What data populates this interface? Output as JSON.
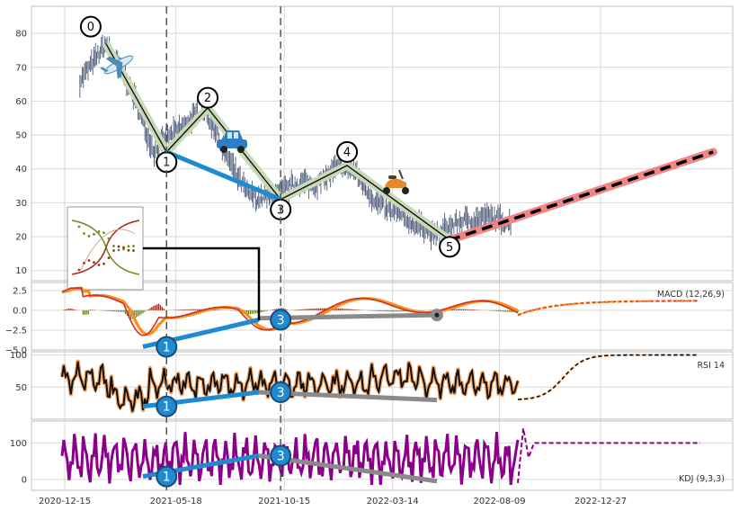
{
  "chart_data": {
    "type": "line",
    "x_ticks": [
      "2020-12-15",
      "2021-05-18",
      "2021-10-15",
      "2022-03-14",
      "2022-08-09",
      "2022-12-27"
    ],
    "panels": [
      {
        "id": "price",
        "label": "",
        "ylim": [
          7,
          88
        ],
        "y_ticks": [
          10,
          20,
          30,
          40,
          50,
          60,
          70,
          80
        ],
        "series": [
          {
            "type": "ohlc-bars",
            "values": [
              [
                "2021-01-05",
                66
              ],
              [
                "2021-01-25",
                72
              ],
              [
                "2021-02-10",
                77
              ],
              [
                "2021-03-01",
                70
              ],
              [
                "2021-03-20",
                62
              ],
              [
                "2021-04-05",
                52
              ],
              [
                "2021-04-18",
                45
              ],
              [
                "2021-05-05",
                49
              ],
              [
                "2021-05-25",
                52
              ],
              [
                "2021-06-10",
                55
              ],
              [
                "2021-06-25",
                58
              ],
              [
                "2021-07-10",
                52
              ],
              [
                "2021-07-25",
                45
              ],
              [
                "2021-08-10",
                38
              ],
              [
                "2021-08-25",
                33
              ],
              [
                "2021-09-08",
                31
              ],
              [
                "2021-09-25",
                32
              ],
              [
                "2021-10-10",
                33
              ],
              [
                "2021-10-25",
                35
              ],
              [
                "2021-11-10",
                36
              ],
              [
                "2021-11-25",
                35
              ],
              [
                "2021-12-10",
                37
              ],
              [
                "2021-12-25",
                40
              ],
              [
                "2022-01-08",
                41
              ],
              [
                "2022-01-22",
                39
              ],
              [
                "2022-02-05",
                34
              ],
              [
                "2022-02-20",
                30
              ],
              [
                "2022-03-05",
                28
              ],
              [
                "2022-03-22",
                27
              ],
              [
                "2022-04-10",
                24
              ],
              [
                "2022-04-25",
                23
              ],
              [
                "2022-05-10",
                20
              ],
              [
                "2022-05-25",
                22
              ],
              [
                "2022-06-10",
                24
              ],
              [
                "2022-06-25",
                25
              ],
              [
                "2022-07-10",
                25
              ],
              [
                "2022-07-25",
                26
              ],
              [
                "2022-08-10",
                25
              ],
              [
                "2022-08-25",
                24
              ]
            ]
          },
          {
            "type": "wave-path",
            "name": "",
            "points": [
              [
                "2021-02-10",
                77
              ],
              [
                "2021-05-05",
                45
              ],
              [
                "2021-07-01",
                58
              ],
              [
                "2021-10-10",
                31
              ],
              [
                "2022-01-10",
                41
              ],
              [
                "2022-06-01",
                19
              ]
            ]
          },
          {
            "type": "trend-line",
            "color": "#1f8ad0",
            "points": [
              [
                "2021-05-05",
                45
              ],
              [
                "2021-10-10",
                31
              ]
            ]
          },
          {
            "type": "projection",
            "color": "#f08080",
            "points": [
              [
                "2022-06-01",
                19
              ],
              [
                "2023-06-01",
                45
              ]
            ]
          }
        ],
        "wave_labels": [
          {
            "label": "0",
            "x": "2021-01-20",
            "y": 82
          },
          {
            "label": "1",
            "x": "2021-05-05",
            "y": 42
          },
          {
            "label": "2",
            "x": "2021-07-01",
            "y": 61
          },
          {
            "label": "3",
            "x": "2021-10-10",
            "y": 28
          },
          {
            "label": "4",
            "x": "2022-01-10",
            "y": 45
          },
          {
            "label": "5",
            "x": "2022-06-01",
            "y": 17
          }
        ],
        "vlines": [
          "2021-05-05",
          "2021-10-10"
        ],
        "icons": [
          "airplane-icon",
          "car-icon",
          "scooter-icon"
        ]
      },
      {
        "id": "macd",
        "label": "MACD (12,26,9)",
        "ylim": [
          -5,
          3.5
        ],
        "y_ticks": [
          "2.5",
          "0.0",
          "−2.5",
          "−5.0"
        ],
        "divergence_labels": [
          {
            "label": "1",
            "x": "2021-05-05",
            "y": -4.6
          },
          {
            "label": "3",
            "x": "2021-10-10",
            "y": -1.2
          }
        ]
      },
      {
        "id": "rsi",
        "label": "RSI 14",
        "ylim": [
          0,
          105
        ],
        "y_ticks": [
          "100",
          "50"
        ],
        "divergence_labels": [
          {
            "label": "1",
            "x": "2021-05-05",
            "y": 20
          },
          {
            "label": "3",
            "x": "2021-10-10",
            "y": 42
          }
        ]
      },
      {
        "id": "kdj",
        "label": "KDJ (9,3,3)",
        "ylim": [
          -30,
          160
        ],
        "y_ticks": [
          "100",
          "0"
        ],
        "divergence_labels": [
          {
            "label": "1",
            "x": "2021-05-05",
            "y": 8
          },
          {
            "label": "3",
            "x": "2021-10-10",
            "y": 65
          }
        ]
      }
    ],
    "colors": {
      "price_bars": "#4a5a78",
      "wave_band": "#c9d8b6",
      "wave_line": "#111111",
      "trend_blue": "#1f8ad0",
      "divergence_gray": "#8a8a8a",
      "projection_red": "#f08080",
      "macd_line": "#cc3322",
      "macd_signal": "#ff8c1a",
      "macd_hist_pos": "#a03020",
      "macd_hist_neg": "#6b8e23",
      "rsi_line": "#111111",
      "rsi_glow": "#f4a460",
      "kdj_line": "#8b008b",
      "grid": "#d8d8d8"
    }
  }
}
